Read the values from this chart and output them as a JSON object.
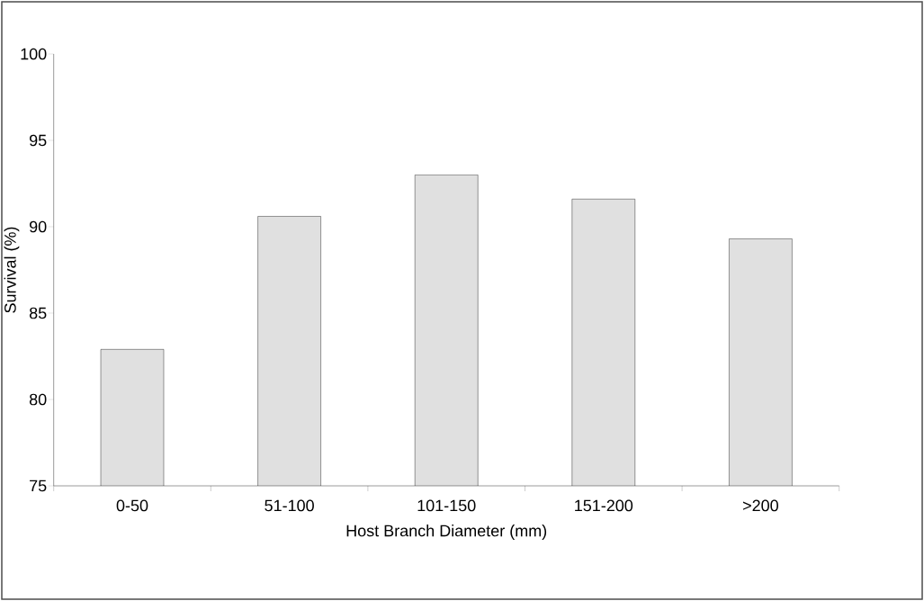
{
  "chart_data": {
    "type": "bar",
    "xlabel": "Host Branch Diameter (mm)",
    "ylabel": "Survival (%)",
    "categories": [
      "0-50",
      "51-100",
      "101-150",
      "151-200",
      ">200"
    ],
    "values": [
      82.9,
      90.6,
      93.0,
      91.6,
      89.3
    ],
    "color": "#e0e0e0",
    "ylim": [
      75,
      100
    ],
    "yticks": [
      75,
      80,
      85,
      90,
      95,
      100
    ],
    "grid": false
  }
}
